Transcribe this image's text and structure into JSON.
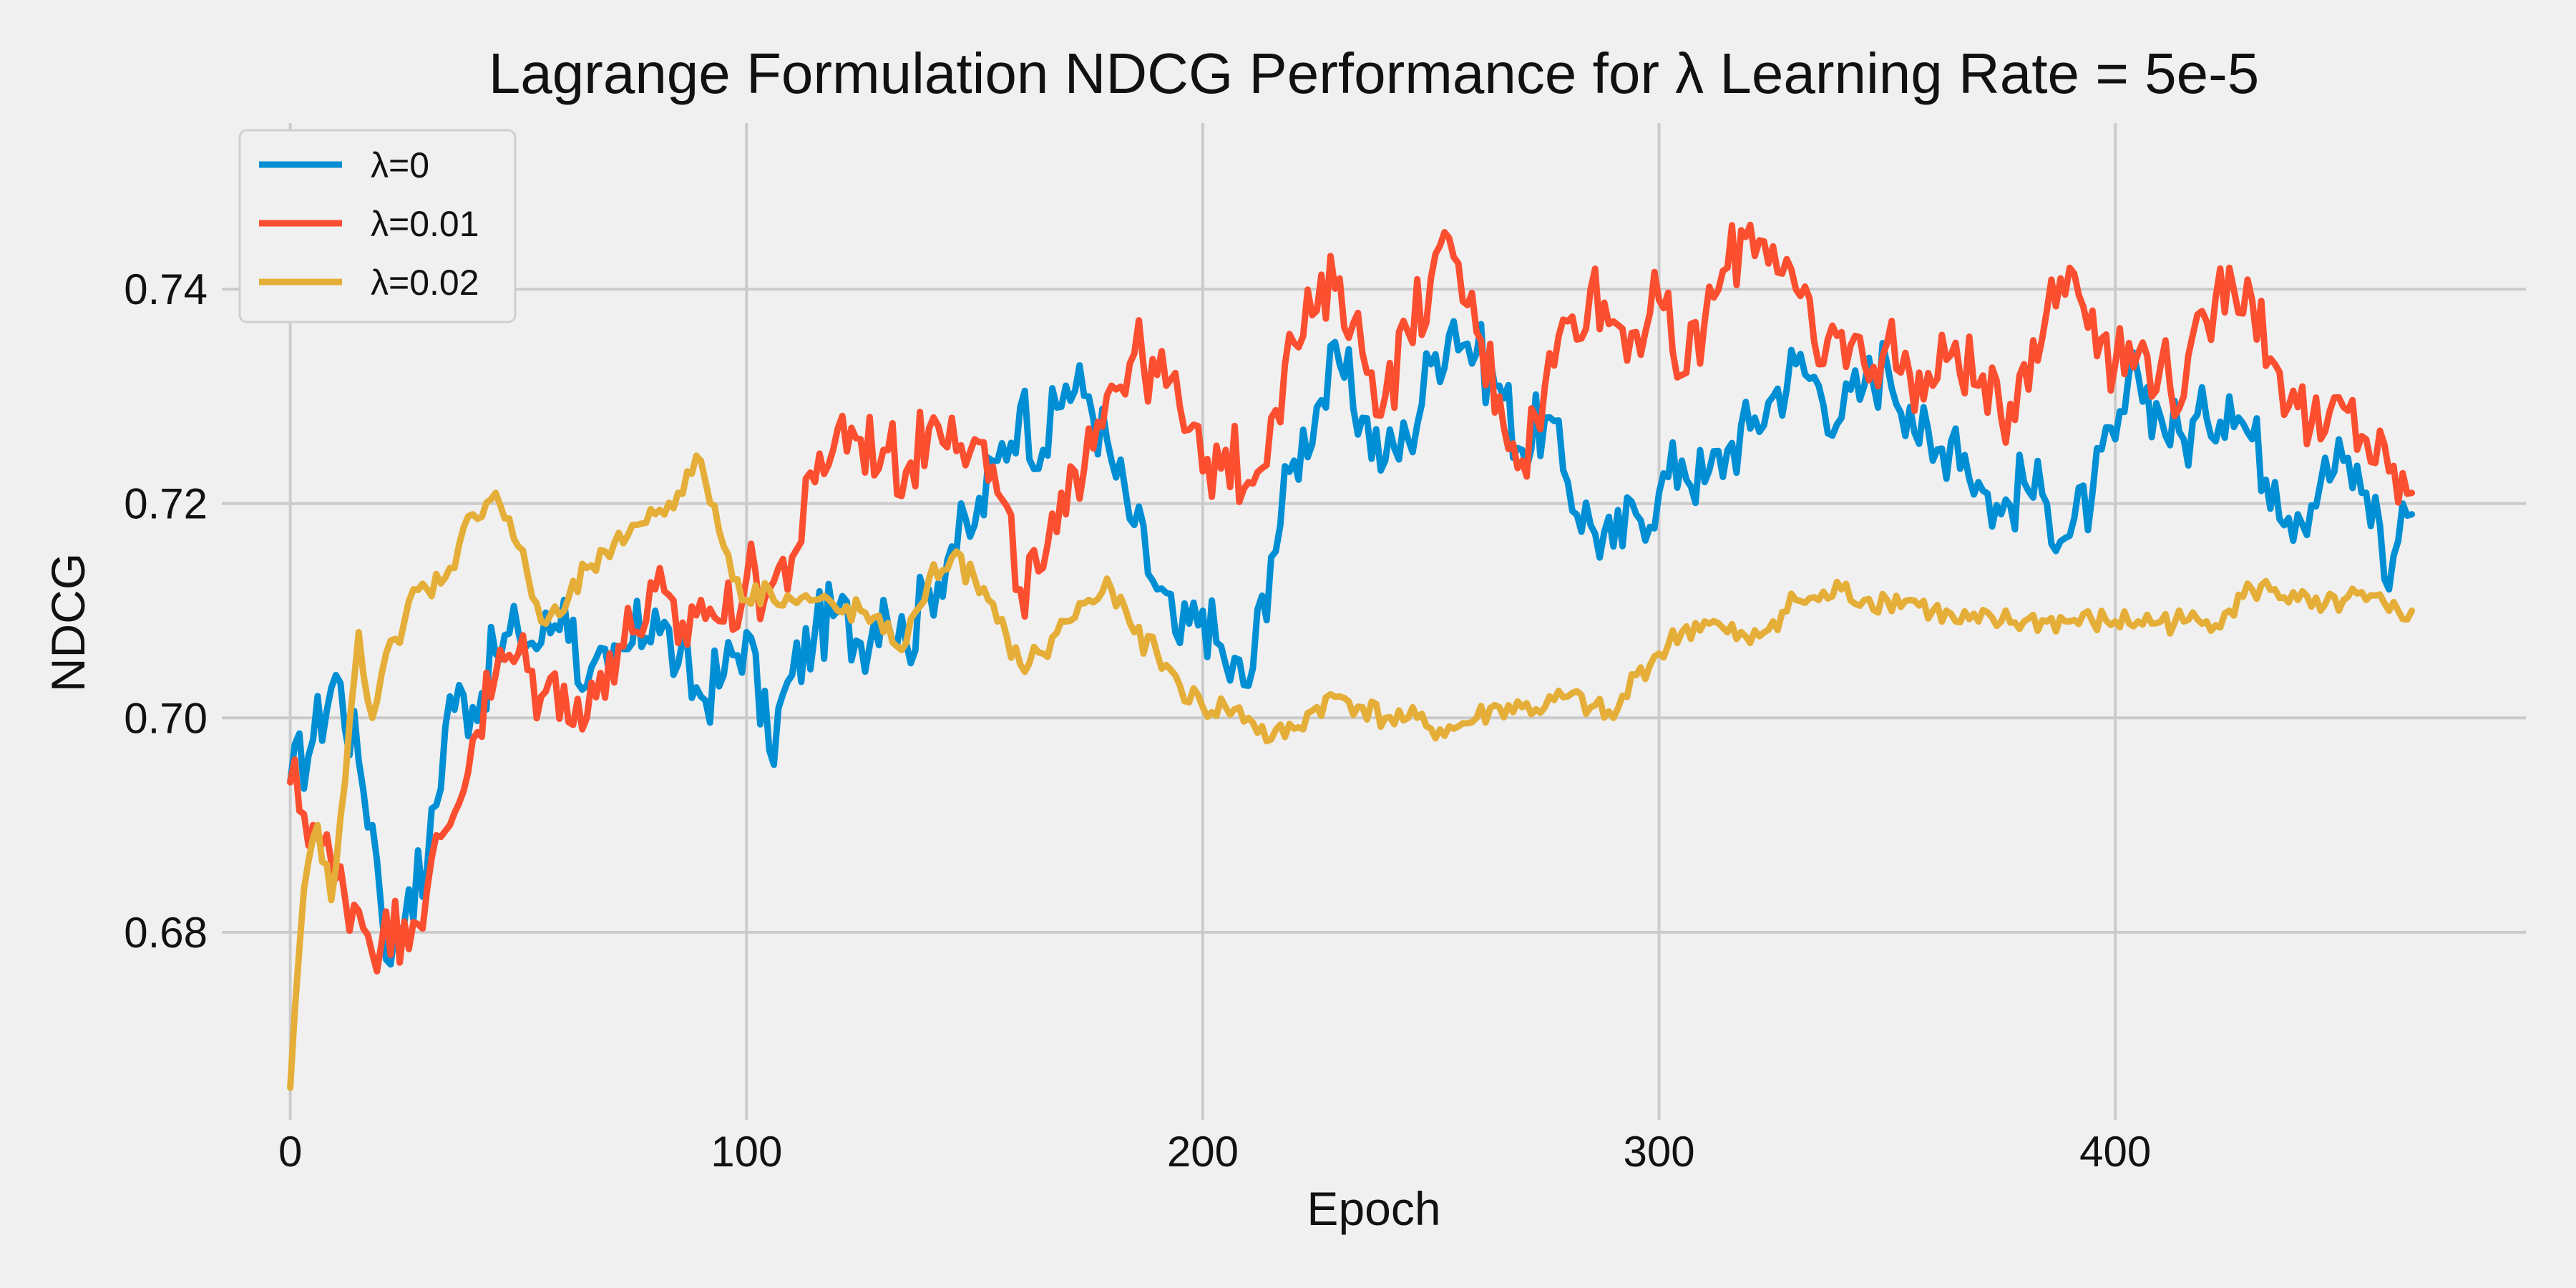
{
  "chart_data": {
    "type": "line",
    "title": "Lagrange Formulation NDCG Performance for λ Learning Rate = 5e-5",
    "xlabel": "Epoch",
    "ylabel": "NDCG",
    "xlim": [
      -15,
      490
    ],
    "ylim": [
      0.6625,
      0.7555
    ],
    "xticks": [
      0,
      100,
      200,
      300,
      400
    ],
    "yticks": [
      0.68,
      0.7,
      0.72,
      0.74
    ],
    "xtick_labels": [
      "0",
      "100",
      "200",
      "300",
      "400"
    ],
    "ytick_labels": [
      "0.68",
      "0.70",
      "0.72",
      "0.74"
    ],
    "grid": true,
    "legend_position": "top-left",
    "colors": {
      "background": "#f0f0f0",
      "grid": "#cbcbcb"
    },
    "series": [
      {
        "name": "λ=0",
        "color": "#008fd5",
        "anchors": [
          [
            0,
            0.694
          ],
          [
            5,
            0.698
          ],
          [
            10,
            0.704
          ],
          [
            15,
            0.696
          ],
          [
            18,
            0.69
          ],
          [
            22,
            0.677
          ],
          [
            26,
            0.684
          ],
          [
            30,
            0.686
          ],
          [
            35,
            0.702
          ],
          [
            40,
            0.701
          ],
          [
            45,
            0.706
          ],
          [
            50,
            0.708
          ],
          [
            55,
            0.707
          ],
          [
            60,
            0.711
          ],
          [
            65,
            0.703
          ],
          [
            70,
            0.704
          ],
          [
            75,
            0.707
          ],
          [
            80,
            0.71
          ],
          [
            85,
            0.705
          ],
          [
            90,
            0.702
          ],
          [
            95,
            0.704
          ],
          [
            100,
            0.708
          ],
          [
            105,
            0.697
          ],
          [
            110,
            0.704
          ],
          [
            115,
            0.708
          ],
          [
            120,
            0.71
          ],
          [
            125,
            0.707
          ],
          [
            130,
            0.711
          ],
          [
            135,
            0.707
          ],
          [
            140,
            0.712
          ],
          [
            145,
            0.716
          ],
          [
            150,
            0.718
          ],
          [
            155,
            0.724
          ],
          [
            160,
            0.729
          ],
          [
            165,
            0.725
          ],
          [
            170,
            0.731
          ],
          [
            175,
            0.73
          ],
          [
            180,
            0.724
          ],
          [
            185,
            0.718
          ],
          [
            190,
            0.712
          ],
          [
            195,
            0.707
          ],
          [
            200,
            0.71
          ],
          [
            205,
            0.705
          ],
          [
            210,
            0.703
          ],
          [
            215,
            0.715
          ],
          [
            220,
            0.724
          ],
          [
            225,
            0.729
          ],
          [
            230,
            0.733
          ],
          [
            235,
            0.728
          ],
          [
            240,
            0.724
          ],
          [
            245,
            0.726
          ],
          [
            250,
            0.733
          ],
          [
            255,
            0.737
          ],
          [
            260,
            0.734
          ],
          [
            265,
            0.731
          ],
          [
            270,
            0.725
          ],
          [
            275,
            0.728
          ],
          [
            280,
            0.722
          ],
          [
            285,
            0.718
          ],
          [
            290,
            0.716
          ],
          [
            295,
            0.719
          ],
          [
            300,
            0.721
          ],
          [
            305,
            0.724
          ],
          [
            310,
            0.722
          ],
          [
            315,
            0.725
          ],
          [
            320,
            0.727
          ],
          [
            325,
            0.73
          ],
          [
            330,
            0.733
          ],
          [
            335,
            0.731
          ],
          [
            340,
            0.728
          ],
          [
            345,
            0.731
          ],
          [
            350,
            0.733
          ],
          [
            355,
            0.729
          ],
          [
            360,
            0.724
          ],
          [
            365,
            0.727
          ],
          [
            370,
            0.722
          ],
          [
            375,
            0.719
          ],
          [
            380,
            0.722
          ],
          [
            385,
            0.72
          ],
          [
            390,
            0.717
          ],
          [
            395,
            0.721
          ],
          [
            400,
            0.726
          ],
          [
            405,
            0.732
          ],
          [
            410,
            0.728
          ],
          [
            415,
            0.726
          ],
          [
            420,
            0.728
          ],
          [
            425,
            0.73
          ],
          [
            430,
            0.726
          ],
          [
            435,
            0.722
          ],
          [
            440,
            0.719
          ],
          [
            445,
            0.722
          ],
          [
            450,
            0.724
          ],
          [
            455,
            0.721
          ],
          [
            458,
            0.718
          ],
          [
            460,
            0.712
          ],
          [
            463,
            0.72
          ],
          [
            465,
            0.719
          ]
        ]
      },
      {
        "name": "λ=0.01",
        "color": "#fc4f30",
        "anchors": [
          [
            0,
            0.694
          ],
          [
            5,
            0.69
          ],
          [
            10,
            0.685
          ],
          [
            15,
            0.682
          ],
          [
            20,
            0.679
          ],
          [
            25,
            0.681
          ],
          [
            30,
            0.684
          ],
          [
            35,
            0.69
          ],
          [
            40,
            0.698
          ],
          [
            45,
            0.704
          ],
          [
            50,
            0.706
          ],
          [
            55,
            0.702
          ],
          [
            60,
            0.703
          ],
          [
            65,
            0.7
          ],
          [
            70,
            0.706
          ],
          [
            75,
            0.708
          ],
          [
            80,
            0.712
          ],
          [
            85,
            0.707
          ],
          [
            90,
            0.711
          ],
          [
            95,
            0.709
          ],
          [
            100,
            0.713
          ],
          [
            105,
            0.712
          ],
          [
            110,
            0.715
          ],
          [
            115,
            0.722
          ],
          [
            120,
            0.727
          ],
          [
            125,
            0.726
          ],
          [
            130,
            0.725
          ],
          [
            135,
            0.723
          ],
          [
            140,
            0.727
          ],
          [
            145,
            0.728
          ],
          [
            150,
            0.726
          ],
          [
            155,
            0.721
          ],
          [
            160,
            0.712
          ],
          [
            165,
            0.714
          ],
          [
            170,
            0.719
          ],
          [
            175,
            0.727
          ],
          [
            180,
            0.731
          ],
          [
            185,
            0.734
          ],
          [
            190,
            0.732
          ],
          [
            195,
            0.729
          ],
          [
            200,
            0.723
          ],
          [
            205,
            0.725
          ],
          [
            210,
            0.722
          ],
          [
            215,
            0.728
          ],
          [
            220,
            0.735
          ],
          [
            225,
            0.738
          ],
          [
            230,
            0.741
          ],
          [
            235,
            0.734
          ],
          [
            240,
            0.73
          ],
          [
            245,
            0.736
          ],
          [
            250,
            0.741
          ],
          [
            255,
            0.743
          ],
          [
            260,
            0.736
          ],
          [
            265,
            0.73
          ],
          [
            270,
            0.724
          ],
          [
            275,
            0.731
          ],
          [
            280,
            0.737
          ],
          [
            285,
            0.74
          ],
          [
            290,
            0.737
          ],
          [
            295,
            0.736
          ],
          [
            300,
            0.739
          ],
          [
            305,
            0.732
          ],
          [
            310,
            0.737
          ],
          [
            315,
            0.742
          ],
          [
            320,
            0.746
          ],
          [
            325,
            0.744
          ],
          [
            330,
            0.74
          ],
          [
            335,
            0.733
          ],
          [
            340,
            0.736
          ],
          [
            345,
            0.733
          ],
          [
            350,
            0.735
          ],
          [
            355,
            0.732
          ],
          [
            360,
            0.731
          ],
          [
            365,
            0.735
          ],
          [
            370,
            0.731
          ],
          [
            375,
            0.728
          ],
          [
            380,
            0.733
          ],
          [
            385,
            0.738
          ],
          [
            390,
            0.742
          ],
          [
            395,
            0.738
          ],
          [
            400,
            0.733
          ],
          [
            405,
            0.734
          ],
          [
            410,
            0.733
          ],
          [
            415,
            0.73
          ],
          [
            420,
            0.737
          ],
          [
            425,
            0.742
          ],
          [
            430,
            0.739
          ],
          [
            435,
            0.733
          ],
          [
            440,
            0.729
          ],
          [
            445,
            0.726
          ],
          [
            450,
            0.729
          ],
          [
            455,
            0.726
          ],
          [
            460,
            0.723
          ],
          [
            465,
            0.721
          ]
        ]
      },
      {
        "name": "λ=0.02",
        "color": "#e5ae38",
        "anchors": [
          [
            0,
            0.6655
          ],
          [
            3,
            0.684
          ],
          [
            6,
            0.69
          ],
          [
            9,
            0.683
          ],
          [
            12,
            0.694
          ],
          [
            15,
            0.708
          ],
          [
            18,
            0.7
          ],
          [
            21,
            0.706
          ],
          [
            24,
            0.707
          ],
          [
            27,
            0.712
          ],
          [
            30,
            0.712
          ],
          [
            35,
            0.714
          ],
          [
            40,
            0.719
          ],
          [
            45,
            0.721
          ],
          [
            50,
            0.716
          ],
          [
            55,
            0.709
          ],
          [
            60,
            0.71
          ],
          [
            65,
            0.714
          ],
          [
            70,
            0.715
          ],
          [
            75,
            0.718
          ],
          [
            80,
            0.719
          ],
          [
            85,
            0.721
          ],
          [
            90,
            0.724
          ],
          [
            95,
            0.716
          ],
          [
            100,
            0.711
          ],
          [
            105,
            0.712
          ],
          [
            110,
            0.711
          ],
          [
            115,
            0.711
          ],
          [
            120,
            0.71
          ],
          [
            125,
            0.71
          ],
          [
            130,
            0.708
          ],
          [
            135,
            0.707
          ],
          [
            140,
            0.713
          ],
          [
            145,
            0.715
          ],
          [
            150,
            0.713
          ],
          [
            155,
            0.709
          ],
          [
            160,
            0.705
          ],
          [
            165,
            0.706
          ],
          [
            170,
            0.709
          ],
          [
            175,
            0.711
          ],
          [
            180,
            0.712
          ],
          [
            185,
            0.708
          ],
          [
            190,
            0.706
          ],
          [
            195,
            0.703
          ],
          [
            200,
            0.701
          ],
          [
            205,
            0.701
          ],
          [
            210,
            0.7
          ],
          [
            215,
            0.698
          ],
          [
            220,
            0.699
          ],
          [
            225,
            0.701
          ],
          [
            230,
            0.702
          ],
          [
            235,
            0.701
          ],
          [
            240,
            0.7
          ],
          [
            245,
            0.7
          ],
          [
            250,
            0.699
          ],
          [
            255,
            0.699
          ],
          [
            260,
            0.7
          ],
          [
            265,
            0.701
          ],
          [
            270,
            0.701
          ],
          [
            275,
            0.701
          ],
          [
            280,
            0.702
          ],
          [
            285,
            0.701
          ],
          [
            290,
            0.7
          ],
          [
            295,
            0.704
          ],
          [
            300,
            0.706
          ],
          [
            305,
            0.708
          ],
          [
            310,
            0.709
          ],
          [
            315,
            0.708
          ],
          [
            320,
            0.707
          ],
          [
            325,
            0.709
          ],
          [
            330,
            0.711
          ],
          [
            335,
            0.711
          ],
          [
            340,
            0.712
          ],
          [
            345,
            0.711
          ],
          [
            350,
            0.711
          ],
          [
            355,
            0.711
          ],
          [
            360,
            0.71
          ],
          [
            365,
            0.709
          ],
          [
            370,
            0.709
          ],
          [
            375,
            0.709
          ],
          [
            380,
            0.709
          ],
          [
            385,
            0.709
          ],
          [
            390,
            0.709
          ],
          [
            395,
            0.709
          ],
          [
            400,
            0.709
          ],
          [
            405,
            0.709
          ],
          [
            410,
            0.709
          ],
          [
            415,
            0.709
          ],
          [
            420,
            0.709
          ],
          [
            425,
            0.71
          ],
          [
            430,
            0.712
          ],
          [
            435,
            0.712
          ],
          [
            440,
            0.711
          ],
          [
            445,
            0.71
          ],
          [
            450,
            0.711
          ],
          [
            455,
            0.711
          ],
          [
            460,
            0.71
          ],
          [
            465,
            0.71
          ]
        ]
      }
    ]
  }
}
